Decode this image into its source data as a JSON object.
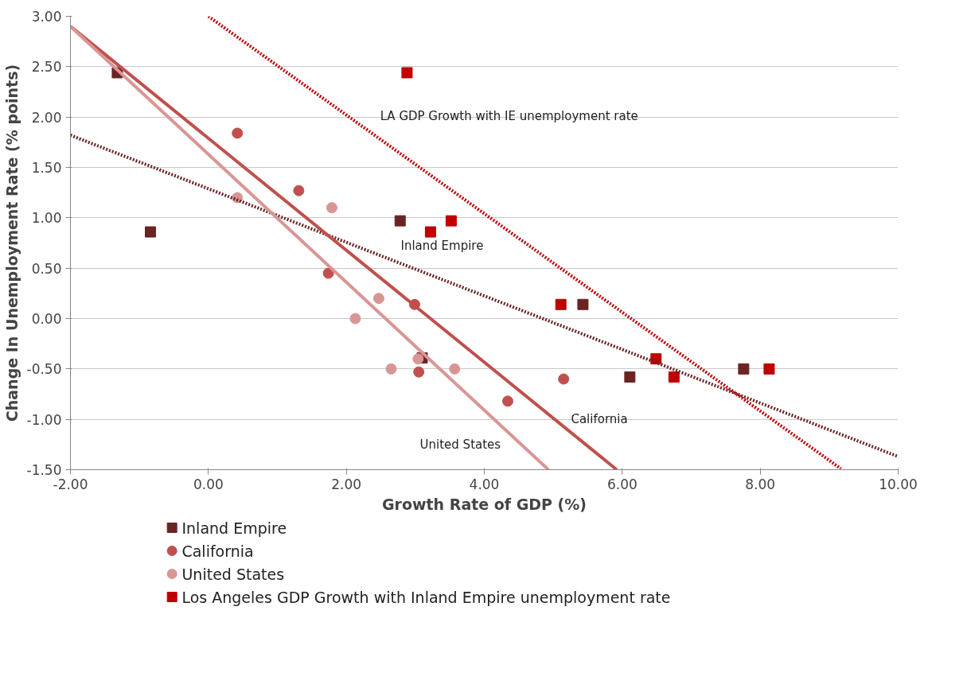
{
  "chart_data": {
    "type": "scatter",
    "xlabel": "Growth Rate of GDP (%)",
    "ylabel": "Change In Unemployment Rate (% points)",
    "xlim": [
      -2,
      10
    ],
    "ylim": [
      -1.5,
      3
    ],
    "xticks": [
      {
        "value": -2,
        "label": "-2.00"
      },
      {
        "value": 0,
        "label": "0.00"
      },
      {
        "value": 2,
        "label": "2.00"
      },
      {
        "value": 4,
        "label": "4.00"
      },
      {
        "value": 6,
        "label": "6.00"
      },
      {
        "value": 8,
        "label": "8.00"
      },
      {
        "value": 10,
        "label": "10.00"
      }
    ],
    "yticks": [
      {
        "value": -1.5,
        "label": "-1.50"
      },
      {
        "value": -1,
        "label": "-1.00"
      },
      {
        "value": -0.5,
        "label": "-0.50"
      },
      {
        "value": 0,
        "label": "0.00"
      },
      {
        "value": 0.5,
        "label": "0.50"
      },
      {
        "value": 1,
        "label": "1.00"
      },
      {
        "value": 1.5,
        "label": "1.50"
      },
      {
        "value": 2,
        "label": "2.00"
      },
      {
        "value": 2.5,
        "label": "2.50"
      },
      {
        "value": 3,
        "label": "3.00"
      }
    ],
    "grid": "y",
    "legend": "bottom",
    "series": [
      {
        "name": "Inland Empire",
        "marker": "square",
        "color": "#6b2424",
        "x": [
          -1.32,
          -0.84,
          2.78,
          3.1,
          5.43,
          6.11,
          7.76
        ],
        "values": [
          2.44,
          0.86,
          0.97,
          -0.39,
          0.14,
          -0.58,
          -0.5
        ]
      },
      {
        "name": "California",
        "marker": "circle",
        "color": "#c0504d",
        "x": [
          0.42,
          1.31,
          1.74,
          2.99,
          3.05,
          4.34,
          5.15
        ],
        "values": [
          1.84,
          1.27,
          0.45,
          0.14,
          -0.53,
          -0.82,
          -0.6
        ]
      },
      {
        "name": "United States",
        "marker": "circle",
        "color": "#d99594",
        "x": [
          0.42,
          1.79,
          2.47,
          2.13,
          2.65,
          3.04,
          3.57
        ],
        "values": [
          1.2,
          1.1,
          0.2,
          0.0,
          -0.5,
          -0.4,
          -0.5
        ]
      },
      {
        "name": "Los Angeles GDP Growth with Inland Empire unemployment rate",
        "marker": "square",
        "color": "#c00000",
        "x": [
          2.88,
          3.22,
          3.52,
          5.11,
          6.49,
          6.75,
          8.13
        ],
        "values": [
          2.44,
          0.86,
          0.97,
          0.14,
          -0.4,
          -0.58,
          -0.5
        ]
      },
      {
        "type": "line",
        "line_style": "dotted",
        "color": "#6b2424",
        "x": [
          -2,
          10
        ],
        "values": [
          1.82,
          -1.37
        ]
      },
      {
        "type": "line",
        "line_style": "solid",
        "color": "#c0504d",
        "x": [
          -2,
          5.92
        ],
        "values": [
          2.9,
          -1.5
        ]
      },
      {
        "type": "line",
        "line_style": "solid",
        "color": "#d99594",
        "x": [
          -2,
          4.93
        ],
        "values": [
          2.9,
          -1.5
        ]
      },
      {
        "type": "line",
        "line_style": "dotted",
        "color": "#c00000",
        "x": [
          0,
          9.17
        ],
        "values": [
          3.0,
          -1.49
        ]
      }
    ],
    "annotations": [
      "LA GDP Growth with IE unemployment rate",
      "Inland Empire",
      "California",
      "United States"
    ]
  }
}
